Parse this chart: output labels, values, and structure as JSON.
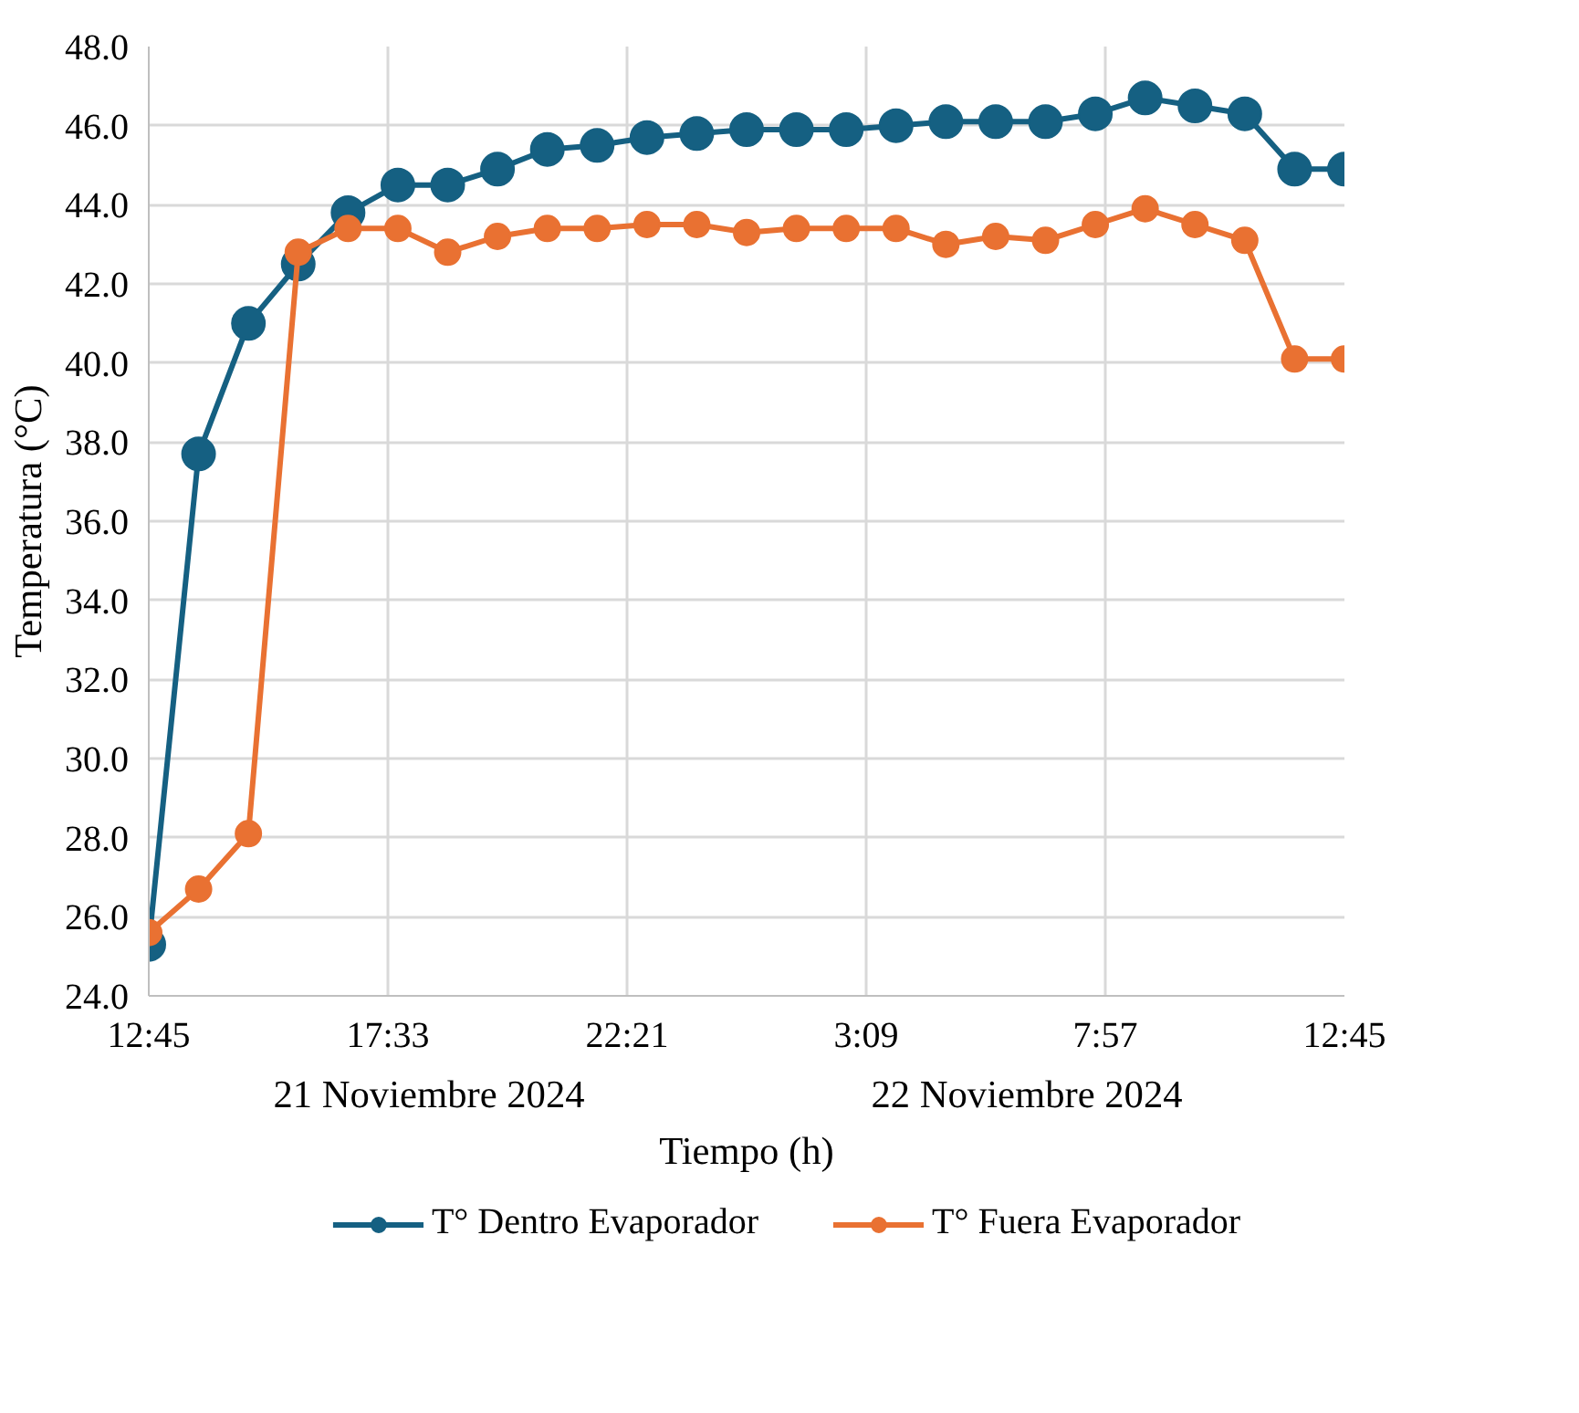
{
  "chart_data": {
    "type": "line",
    "xlabel": "Tiempo (h)",
    "ylabel": "Temperatura (°C)",
    "x": [
      "2024-11-21T12:45",
      "2024-11-21T13:45",
      "2024-11-21T14:45",
      "2024-11-21T15:45",
      "2024-11-21T16:45",
      "2024-11-21T17:45",
      "2024-11-21T18:45",
      "2024-11-21T19:45",
      "2024-11-21T20:45",
      "2024-11-21T21:45",
      "2024-11-21T22:45",
      "2024-11-21T23:45",
      "2024-11-22T00:45",
      "2024-11-22T01:45",
      "2024-11-22T02:45",
      "2024-11-22T03:45",
      "2024-11-22T04:45",
      "2024-11-22T05:45",
      "2024-11-22T06:45",
      "2024-11-22T07:45",
      "2024-11-22T08:45",
      "2024-11-22T09:45",
      "2024-11-22T10:45",
      "2024-11-22T11:45",
      "2024-11-22T12:45"
    ],
    "series": [
      {
        "name": "T° Dentro Evaporador",
        "color": "#156082",
        "values": [
          25.3,
          37.7,
          41.0,
          42.5,
          43.8,
          44.5,
          44.5,
          44.9,
          45.4,
          45.5,
          45.7,
          45.8,
          45.9,
          45.9,
          45.9,
          46.0,
          46.1,
          46.1,
          46.1,
          46.3,
          46.7,
          46.5,
          46.3,
          44.9,
          44.9
        ]
      },
      {
        "name": "T° Fuera Evaporador",
        "color": "#e97132",
        "values": [
          25.6,
          26.7,
          28.1,
          42.8,
          43.4,
          43.4,
          42.8,
          43.2,
          43.4,
          43.4,
          43.5,
          43.5,
          43.3,
          43.4,
          43.4,
          43.4,
          43.0,
          43.2,
          43.1,
          43.5,
          43.9,
          43.5,
          43.1,
          40.1,
          40.1
        ]
      }
    ],
    "xlim": [
      "2024-11-21T12:45",
      "2024-11-22T12:45"
    ],
    "xticks": [
      {
        "value": "2024-11-21T12:45",
        "label": "12:45"
      },
      {
        "value": "2024-11-21T17:33",
        "label": "17:33"
      },
      {
        "value": "2024-11-21T22:21",
        "label": "22:21"
      },
      {
        "value": "2024-11-22T03:09",
        "label": "3:09"
      },
      {
        "value": "2024-11-22T07:57",
        "label": "7:57"
      },
      {
        "value": "2024-11-22T12:45",
        "label": "12:45"
      }
    ],
    "ylim": [
      24,
      48
    ],
    "yticks": [
      {
        "value": 24,
        "label": "24.0"
      },
      {
        "value": 26,
        "label": "26.0"
      },
      {
        "value": 28,
        "label": "28.0"
      },
      {
        "value": 30,
        "label": "30.0"
      },
      {
        "value": 32,
        "label": "32.0"
      },
      {
        "value": 34,
        "label": "34.0"
      },
      {
        "value": 36,
        "label": "36.0"
      },
      {
        "value": 38,
        "label": "38.0"
      },
      {
        "value": 40,
        "label": "40.0"
      },
      {
        "value": 42,
        "label": "42.0"
      },
      {
        "value": 44,
        "label": "44.0"
      },
      {
        "value": 46,
        "label": "46.0"
      },
      {
        "value": 48,
        "label": "48.0"
      }
    ],
    "annotations": [
      "21 Noviembre 2024",
      "22 Noviembre 2024"
    ],
    "grid": true,
    "legend": "bottom",
    "marker": "circle",
    "line_style": "solid"
  }
}
